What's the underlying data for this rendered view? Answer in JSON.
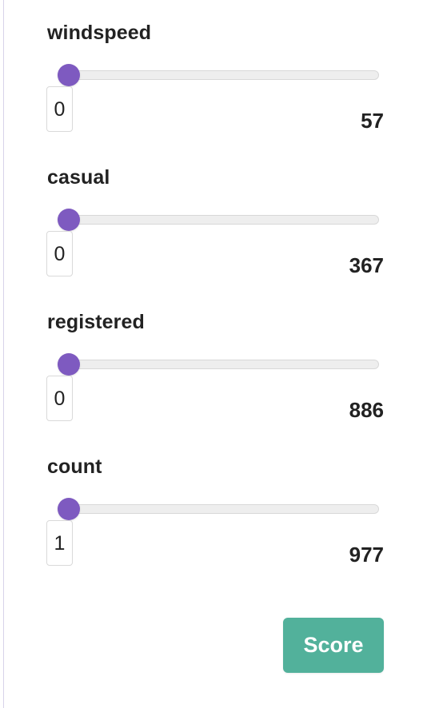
{
  "fields": [
    {
      "label": "windspeed",
      "value": "0",
      "max": "57",
      "slider_fraction": 0
    },
    {
      "label": "casual",
      "value": "0",
      "max": "367",
      "slider_fraction": 0
    },
    {
      "label": "registered",
      "value": "0",
      "max": "886",
      "slider_fraction": 0
    },
    {
      "label": "count",
      "value": "1",
      "max": "977",
      "slider_fraction": 0
    }
  ],
  "score_button": {
    "label": "Score"
  },
  "colors": {
    "slider_thumb": "#7e5ac0",
    "button_bg": "#52b19b",
    "button_text": "#ffffff",
    "text": "#222222"
  }
}
